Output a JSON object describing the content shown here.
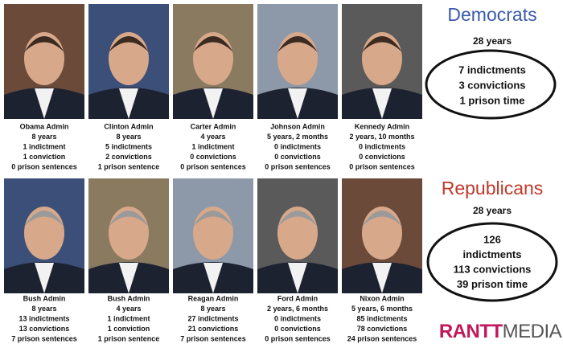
{
  "democrats": {
    "title": "Democrats",
    "years": "28 years",
    "summary": [
      "7 indictments",
      "3 convictions",
      "1 prison time"
    ],
    "admins": [
      [
        "Obama Admin",
        "8 years",
        "1 indictment",
        "1 conviction",
        "0 prison sentences"
      ],
      [
        "Clinton Admin",
        "8 years",
        "5 indictments",
        "2 convictions",
        "1 prison sentence"
      ],
      [
        "Carter Admin",
        "4 years",
        "1 indictment",
        "0 convictions",
        "0 prison sentences"
      ],
      [
        "Johnson Admin",
        "5 years, 2 months",
        "0 indictments",
        "0 convictions",
        "0 prison sentences"
      ],
      [
        "Kennedy Admin",
        "2 years, 10 months",
        "0 indictments",
        "0 convictions",
        "0 prison sentences"
      ]
    ]
  },
  "republicans": {
    "title": "Republicans",
    "years": "28 years",
    "summary": [
      "126",
      "indictments",
      "113 convictions",
      "39 prison time"
    ],
    "admins": [
      [
        "Bush Admin",
        "8 years",
        "13 indictments",
        "13 convictions",
        "7 prison sentences"
      ],
      [
        "Bush Admin",
        "4 years",
        "1 indictment",
        "1 conviction",
        "1 prison sentence"
      ],
      [
        "Reagan Admin",
        "8 years",
        "27 indictments",
        "21 convictions",
        "7 prison sentences"
      ],
      [
        "Ford Admin",
        "2 years, 6 months",
        "0 indictments",
        "0 convictions",
        "0 prison sentences"
      ],
      [
        "Nixon Admin",
        "5 years, 6 months",
        "85 indictments",
        "78 convictions",
        "24 prison sentences"
      ]
    ]
  },
  "logo": {
    "part1": "RANTT",
    "part2": "MEDIA"
  }
}
